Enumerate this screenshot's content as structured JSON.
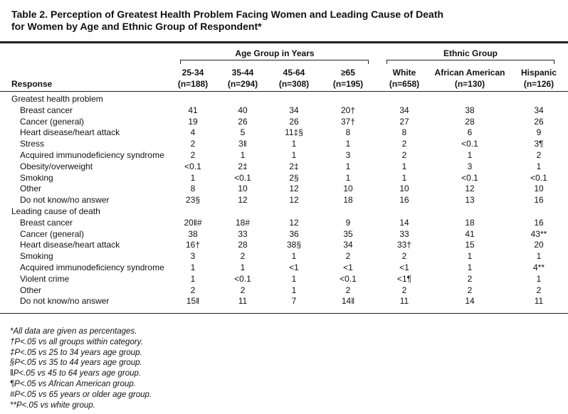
{
  "title": [
    "Table 2. Perception of Greatest Health Problem Facing Women and Leading Cause of Death",
    "for Women by Age and Ethnic Group of Respondent*"
  ],
  "header": {
    "groups": [
      "Age Group in Years",
      "Ethnic Group"
    ],
    "response": "Response",
    "columns": [
      [
        "25-34",
        "(n=188)"
      ],
      [
        "35-44",
        "(n=294)"
      ],
      [
        "45-64",
        "(n=308)"
      ],
      [
        "≥65",
        "(n=195)"
      ],
      [
        "White",
        "(n=658)"
      ],
      [
        "African American",
        "(n=130)"
      ],
      [
        "Hispanic",
        "(n=126)"
      ]
    ]
  },
  "sections": [
    {
      "label": "Greatest health problem",
      "rows": [
        {
          "label": "Breast cancer",
          "cells": [
            "41",
            "40",
            "34",
            "20†",
            "34",
            "38",
            "34"
          ]
        },
        {
          "label": "Cancer (general)",
          "cells": [
            "19",
            "26",
            "26",
            "37†",
            "27",
            "28",
            "26"
          ]
        },
        {
          "label": "Heart disease/heart attack",
          "cells": [
            "4",
            "5",
            "11‡§",
            "8",
            "8",
            "6",
            "9"
          ]
        },
        {
          "label": "Stress",
          "cells": [
            "2",
            "3‖",
            "1",
            "1",
            "2",
            "<0.1",
            "3¶"
          ]
        },
        {
          "label": "Acquired immunodeficiency syndrome",
          "cells": [
            "2",
            "1",
            "1",
            "3",
            "2",
            "1",
            "2"
          ]
        },
        {
          "label": "Obesity/overweight",
          "cells": [
            "<0.1",
            "2‡",
            "2‡",
            "1",
            "1",
            "3",
            "1"
          ]
        },
        {
          "label": "Smoking",
          "cells": [
            "1",
            "<0.1",
            "2§",
            "1",
            "1",
            "<0.1",
            "<0.1"
          ]
        },
        {
          "label": "Other",
          "cells": [
            "8",
            "10",
            "12",
            "10",
            "10",
            "12",
            "10"
          ]
        },
        {
          "label": "Do not know/no answer",
          "cells": [
            "23§",
            "12",
            "12",
            "18",
            "16",
            "13",
            "16"
          ]
        }
      ]
    },
    {
      "label": "Leading cause of death",
      "rows": [
        {
          "label": "Breast cancer",
          "cells": [
            "20‖#",
            "18#",
            "12",
            "9",
            "14",
            "18",
            "16"
          ]
        },
        {
          "label": "Cancer (general)",
          "cells": [
            "38",
            "33",
            "36",
            "35",
            "33",
            "41",
            "43**"
          ]
        },
        {
          "label": "Heart disease/heart attack",
          "cells": [
            "16†",
            "28",
            "38§",
            "34",
            "33†",
            "15",
            "20"
          ]
        },
        {
          "label": "Smoking",
          "cells": [
            "3",
            "2",
            "1",
            "2",
            "2",
            "1",
            "1"
          ]
        },
        {
          "label": "Acquired immunodeficiency syndrome",
          "cells": [
            "1",
            "1",
            "<1",
            "<1",
            "<1",
            "1",
            "4**"
          ]
        },
        {
          "label": "Violent crime",
          "cells": [
            "1",
            "<0.1",
            "1",
            "<0.1",
            "<1¶",
            "2",
            "1"
          ]
        },
        {
          "label": "Other",
          "cells": [
            "2",
            "2",
            "1",
            "2",
            "2",
            "2",
            "2"
          ]
        },
        {
          "label": "Do not know/no answer",
          "cells": [
            "15‖",
            "11",
            "7",
            "14‖",
            "11",
            "14",
            "11"
          ]
        }
      ]
    }
  ],
  "footnotes": [
    "*All data are given as percentages.",
    "†P<.05 vs all groups within category.",
    "‡P<.05 vs 25 to 34 years age group.",
    "§P<.05 vs 35 to 44 years age group.",
    "‖P<.05 vs 45 to 64 years age group.",
    "¶P<.05 vs African American group.",
    "#P<.05 vs 65 years or older age group.",
    "**P<.05 vs white group."
  ]
}
